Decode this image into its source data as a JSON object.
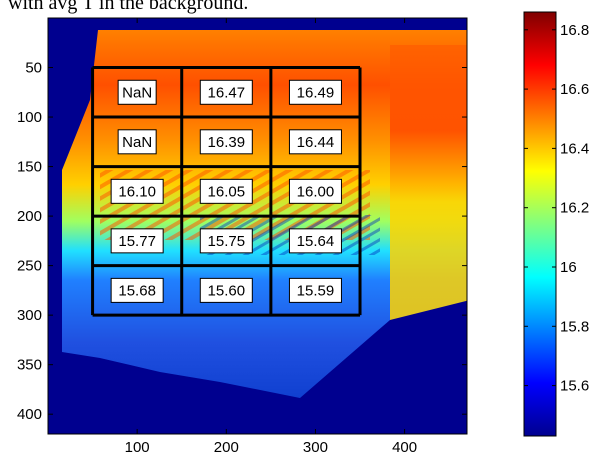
{
  "title_fragment": "with avg T in the background.",
  "chart_data": {
    "type": "heatmap",
    "xlim": [
      0,
      470
    ],
    "ylim": [
      420,
      0
    ],
    "x_ticks": [
      100,
      200,
      300,
      400
    ],
    "y_ticks": [
      50,
      100,
      150,
      200,
      250,
      300,
      350,
      400
    ],
    "grid": {
      "x_edges": [
        50,
        150,
        250,
        350
      ],
      "y_edges": [
        50,
        100,
        150,
        200,
        250,
        300
      ],
      "values": [
        [
          "NaN",
          "16.47",
          "16.49"
        ],
        [
          "NaN",
          "16.39",
          "16.44"
        ],
        [
          "16.10",
          "16.05",
          "16.00"
        ],
        [
          "15.77",
          "15.75",
          "15.64"
        ],
        [
          "15.68",
          "15.60",
          "15.59"
        ]
      ]
    },
    "colorbar": {
      "range": [
        15.43,
        16.86
      ],
      "ticks": [
        "15.6",
        "15.8",
        "16",
        "16.2",
        "16.4",
        "16.6",
        "16.8"
      ],
      "tick_values": [
        15.6,
        15.8,
        16.0,
        16.2,
        16.4,
        16.6,
        16.8
      ],
      "colormap": "jet"
    }
  }
}
